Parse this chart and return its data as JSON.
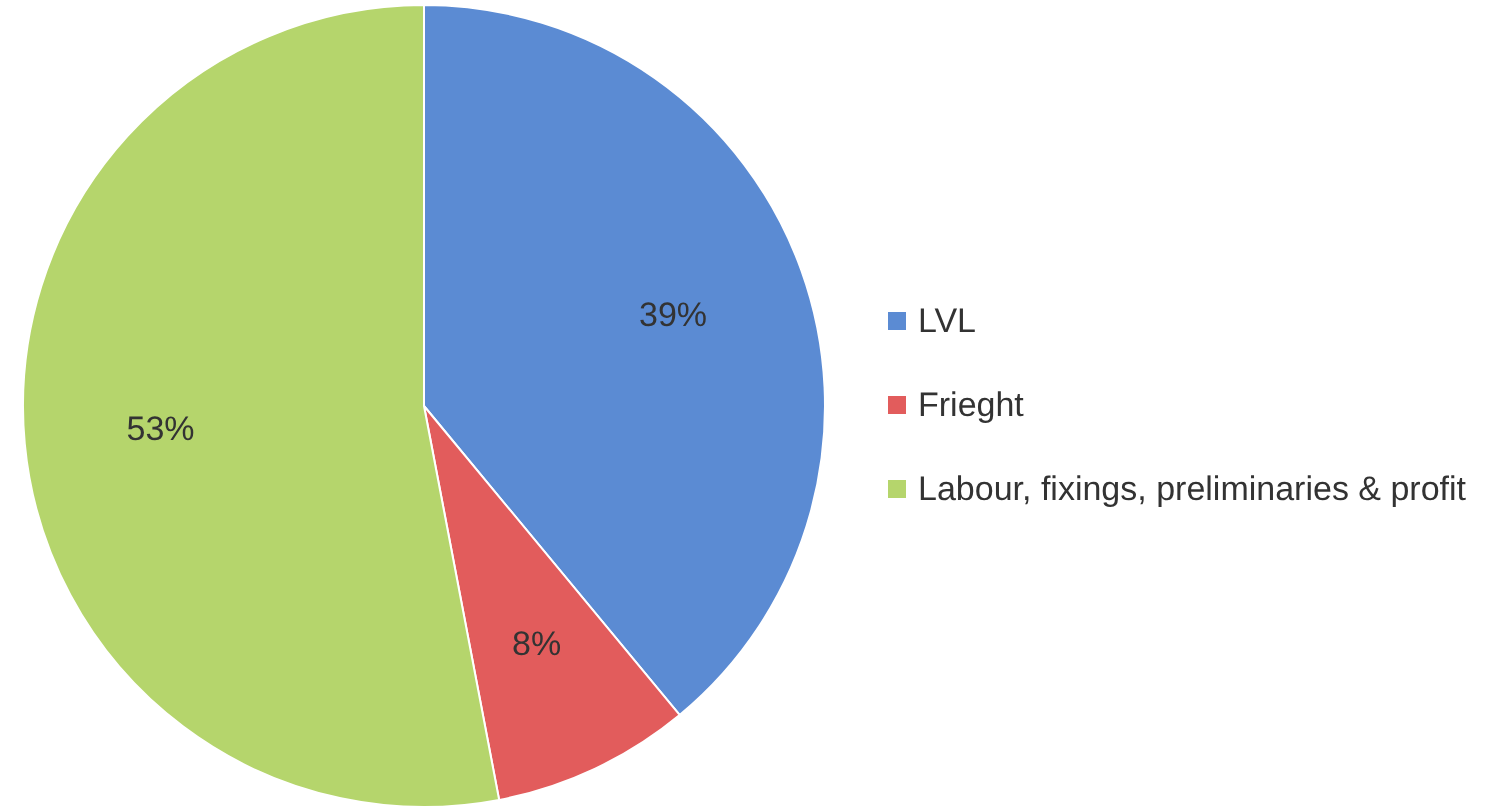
{
  "chart_data": {
    "type": "pie",
    "categories": [
      "LVL",
      "Frieght",
      "Labour, fixings, preliminaries & profit"
    ],
    "values": [
      39,
      8,
      53
    ],
    "colors": [
      "#5b8bd3",
      "#e25c5c",
      "#b5d56c"
    ],
    "value_labels": [
      "39%",
      "8%",
      "53%"
    ],
    "legend": "right"
  }
}
